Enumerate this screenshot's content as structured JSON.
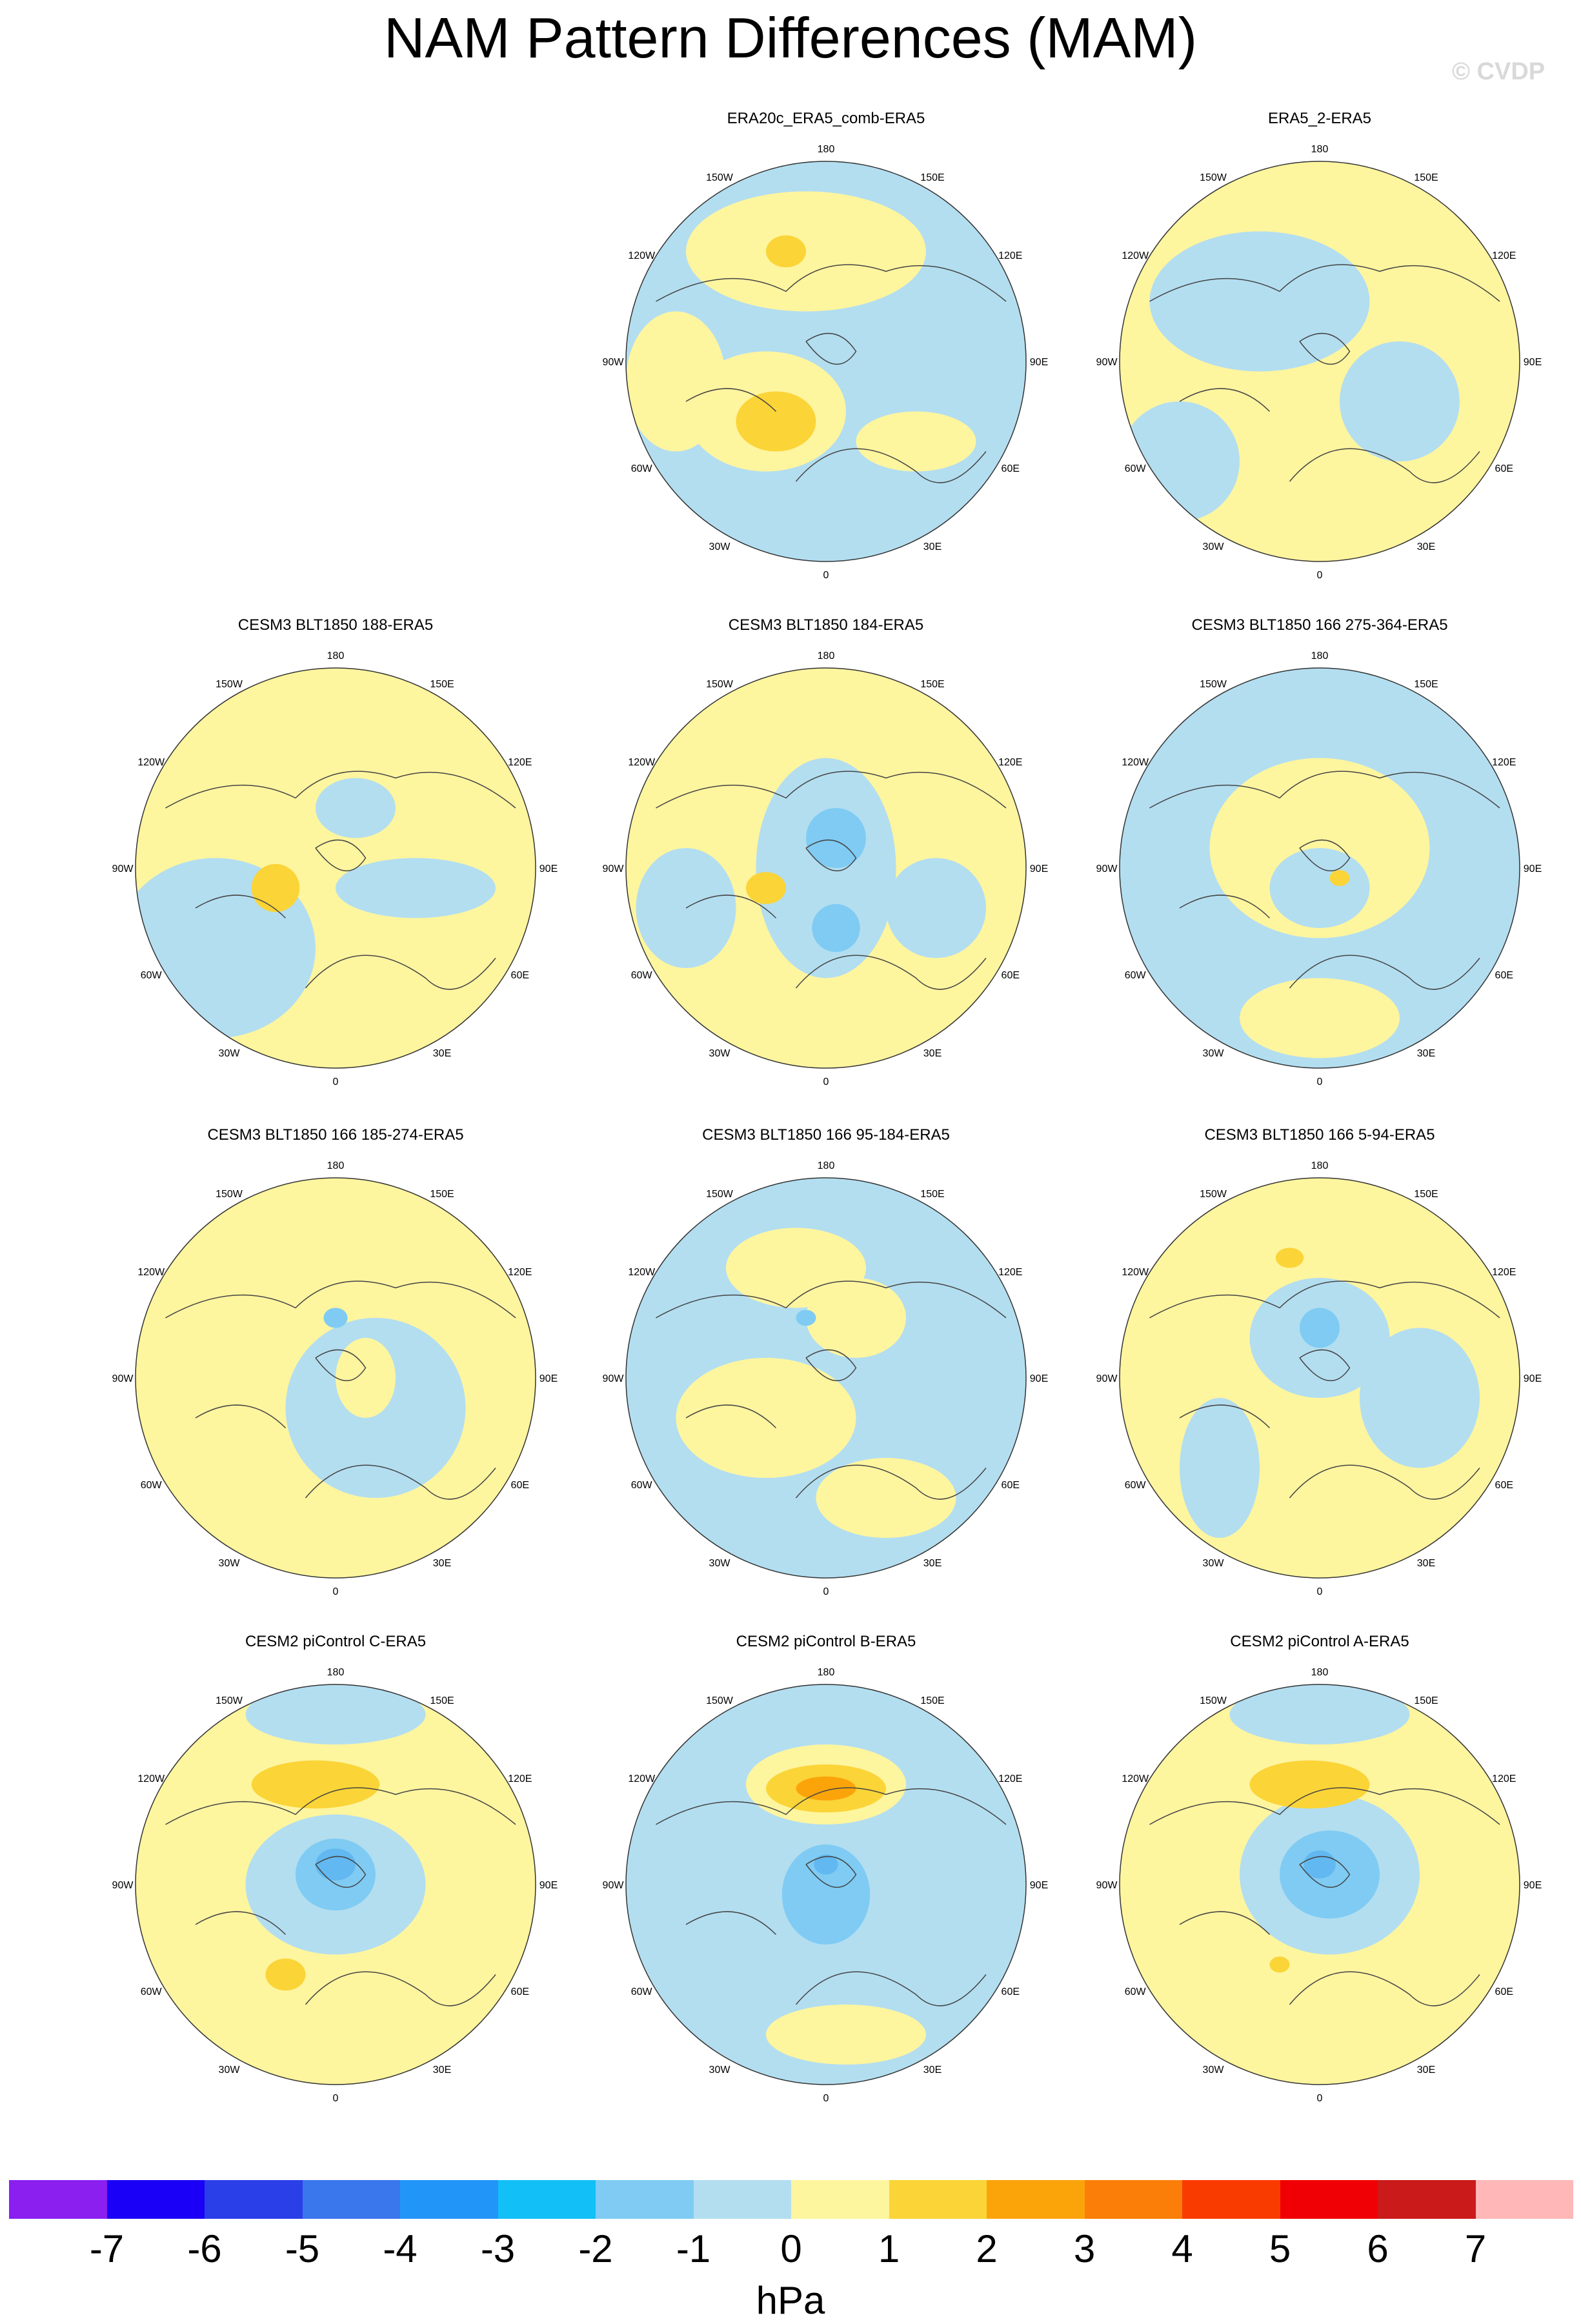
{
  "title": "NAM Pattern Differences (MAM)",
  "copyright": "© CVDP",
  "colors": {
    "plus1": "#fef59f",
    "minus1": "#b3def0",
    "plus2": "#fbd437",
    "minus2": "#7fcbf3",
    "plus3": "#fba40a",
    "minus3": "#62b8f0",
    "coast": "#444444"
  },
  "map_labels": {
    "top": "180",
    "bottom": "0",
    "left": "90W",
    "right": "90E",
    "ul1": "150W",
    "ul2": "120W",
    "ur1": "150E",
    "ur2": "120E",
    "ll1": "60W",
    "ll2": "30W",
    "lr1": "60E",
    "lr2": "30E"
  },
  "panels": [
    {
      "title": "ERA20c_ERA5_comb-ERA5",
      "row": 0,
      "col": 1,
      "base": "minus1",
      "blobs": [
        {
          "dx": -0.1,
          "dy": -0.55,
          "rx": 0.6,
          "ry": 0.3,
          "c": "plus1"
        },
        {
          "dx": -0.75,
          "dy": 0.1,
          "rx": 0.25,
          "ry": 0.35,
          "c": "plus1"
        },
        {
          "dx": -0.3,
          "dy": 0.25,
          "rx": 0.4,
          "ry": 0.3,
          "c": "plus1"
        },
        {
          "dx": -0.25,
          "dy": 0.3,
          "rx": 0.2,
          "ry": 0.15,
          "c": "plus2"
        },
        {
          "dx": -0.2,
          "dy": -0.55,
          "rx": 0.1,
          "ry": 0.08,
          "c": "plus2"
        },
        {
          "dx": 0.45,
          "dy": 0.4,
          "rx": 0.3,
          "ry": 0.15,
          "c": "plus1"
        }
      ]
    },
    {
      "title": "ERA5_2-ERA5",
      "row": 0,
      "col": 2,
      "base": "plus1",
      "blobs": [
        {
          "dx": -0.3,
          "dy": -0.3,
          "rx": 0.55,
          "ry": 0.35,
          "c": "minus1"
        },
        {
          "dx": 0.4,
          "dy": 0.2,
          "rx": 0.3,
          "ry": 0.3,
          "c": "minus1"
        },
        {
          "dx": -0.7,
          "dy": 0.5,
          "rx": 0.3,
          "ry": 0.3,
          "c": "minus1"
        }
      ]
    },
    {
      "title": "CESM3 BLT1850 188-ERA5",
      "row": 1,
      "col": 0,
      "base": "plus1",
      "blobs": [
        {
          "dx": -0.6,
          "dy": 0.4,
          "rx": 0.5,
          "ry": 0.45,
          "c": "minus1"
        },
        {
          "dx": 0.4,
          "dy": 0.1,
          "rx": 0.4,
          "ry": 0.15,
          "c": "minus1"
        },
        {
          "dx": -0.3,
          "dy": 0.1,
          "rx": 0.12,
          "ry": 0.12,
          "c": "plus2"
        },
        {
          "dx": 0.1,
          "dy": -0.3,
          "rx": 0.2,
          "ry": 0.15,
          "c": "minus1"
        }
      ]
    },
    {
      "title": "CESM3 BLT1850 184-ERA5",
      "row": 1,
      "col": 1,
      "base": "plus1",
      "blobs": [
        {
          "dx": 0.0,
          "dy": 0.0,
          "rx": 0.35,
          "ry": 0.55,
          "c": "minus1"
        },
        {
          "dx": 0.05,
          "dy": -0.15,
          "rx": 0.15,
          "ry": 0.15,
          "c": "minus2"
        },
        {
          "dx": 0.05,
          "dy": 0.3,
          "rx": 0.12,
          "ry": 0.12,
          "c": "minus2"
        },
        {
          "dx": -0.7,
          "dy": 0.2,
          "rx": 0.25,
          "ry": 0.3,
          "c": "minus1"
        },
        {
          "dx": 0.55,
          "dy": 0.2,
          "rx": 0.25,
          "ry": 0.25,
          "c": "minus1"
        },
        {
          "dx": -0.3,
          "dy": 0.1,
          "rx": 0.1,
          "ry": 0.08,
          "c": "plus2"
        }
      ]
    },
    {
      "title": "CESM3 BLT1850 166 275-364-ERA5",
      "row": 1,
      "col": 2,
      "base": "minus1",
      "blobs": [
        {
          "dx": 0.0,
          "dy": -0.1,
          "rx": 0.55,
          "ry": 0.45,
          "c": "plus1"
        },
        {
          "dx": 0.0,
          "dy": 0.1,
          "rx": 0.25,
          "ry": 0.2,
          "c": "minus1"
        },
        {
          "dx": 0.0,
          "dy": 0.75,
          "rx": 0.4,
          "ry": 0.2,
          "c": "plus1"
        },
        {
          "dx": 0.1,
          "dy": 0.05,
          "rx": 0.05,
          "ry": 0.04,
          "c": "plus2"
        }
      ]
    },
    {
      "title": "CESM3 BLT1850 166 185-274-ERA5",
      "row": 2,
      "col": 0,
      "base": "plus1",
      "blobs": [
        {
          "dx": 0.2,
          "dy": 0.15,
          "rx": 0.45,
          "ry": 0.45,
          "c": "minus1"
        },
        {
          "dx": 0.15,
          "dy": 0.0,
          "rx": 0.15,
          "ry": 0.2,
          "c": "plus1"
        },
        {
          "dx": 0.0,
          "dy": -0.3,
          "rx": 0.06,
          "ry": 0.05,
          "c": "minus2"
        }
      ]
    },
    {
      "title": "CESM3 BLT1850 166 95-184-ERA5",
      "row": 2,
      "col": 1,
      "base": "minus1",
      "blobs": [
        {
          "dx": -0.3,
          "dy": 0.2,
          "rx": 0.45,
          "ry": 0.3,
          "c": "plus1"
        },
        {
          "dx": 0.15,
          "dy": -0.3,
          "rx": 0.25,
          "ry": 0.2,
          "c": "plus1"
        },
        {
          "dx": 0.3,
          "dy": 0.6,
          "rx": 0.35,
          "ry": 0.2,
          "c": "plus1"
        },
        {
          "dx": -0.15,
          "dy": -0.55,
          "rx": 0.35,
          "ry": 0.2,
          "c": "plus1"
        },
        {
          "dx": -0.1,
          "dy": -0.3,
          "rx": 0.05,
          "ry": 0.04,
          "c": "minus2"
        }
      ]
    },
    {
      "title": "CESM3 BLT1850 166 5-94-ERA5",
      "row": 2,
      "col": 2,
      "base": "plus1",
      "blobs": [
        {
          "dx": 0.0,
          "dy": -0.2,
          "rx": 0.35,
          "ry": 0.3,
          "c": "minus1"
        },
        {
          "dx": 0.5,
          "dy": 0.1,
          "rx": 0.3,
          "ry": 0.35,
          "c": "minus1"
        },
        {
          "dx": -0.5,
          "dy": 0.45,
          "rx": 0.2,
          "ry": 0.35,
          "c": "minus1"
        },
        {
          "dx": 0.0,
          "dy": -0.25,
          "rx": 0.1,
          "ry": 0.1,
          "c": "minus2"
        },
        {
          "dx": -0.15,
          "dy": -0.6,
          "rx": 0.07,
          "ry": 0.05,
          "c": "plus2"
        }
      ]
    },
    {
      "title": "CESM2 piControl C-ERA5",
      "row": 3,
      "col": 0,
      "base": "plus1",
      "blobs": [
        {
          "dx": 0.0,
          "dy": 0.0,
          "rx": 0.45,
          "ry": 0.35,
          "c": "minus1"
        },
        {
          "dx": 0.0,
          "dy": -0.05,
          "rx": 0.2,
          "ry": 0.18,
          "c": "minus2"
        },
        {
          "dx": 0.0,
          "dy": -0.1,
          "rx": 0.1,
          "ry": 0.08,
          "c": "minus3"
        },
        {
          "dx": -0.1,
          "dy": -0.5,
          "rx": 0.32,
          "ry": 0.12,
          "c": "plus2"
        },
        {
          "dx": -0.25,
          "dy": 0.45,
          "rx": 0.1,
          "ry": 0.08,
          "c": "plus2"
        },
        {
          "dx": 0.0,
          "dy": -0.85,
          "rx": 0.45,
          "ry": 0.15,
          "c": "minus1"
        }
      ]
    },
    {
      "title": "CESM2 piControl B-ERA5",
      "row": 3,
      "col": 1,
      "base": "minus1",
      "blobs": [
        {
          "dx": 0.0,
          "dy": -0.5,
          "rx": 0.4,
          "ry": 0.2,
          "c": "plus1"
        },
        {
          "dx": 0.0,
          "dy": -0.48,
          "rx": 0.3,
          "ry": 0.12,
          "c": "plus2"
        },
        {
          "dx": 0.0,
          "dy": -0.48,
          "rx": 0.15,
          "ry": 0.06,
          "c": "plus3"
        },
        {
          "dx": 0.0,
          "dy": 0.05,
          "rx": 0.22,
          "ry": 0.25,
          "c": "minus2"
        },
        {
          "dx": 0.0,
          "dy": -0.1,
          "rx": 0.06,
          "ry": 0.05,
          "c": "minus3"
        },
        {
          "dx": 0.1,
          "dy": 0.75,
          "rx": 0.4,
          "ry": 0.15,
          "c": "plus1"
        }
      ]
    },
    {
      "title": "CESM2 piControl A-ERA5",
      "row": 3,
      "col": 2,
      "base": "plus1",
      "blobs": [
        {
          "dx": 0.05,
          "dy": -0.05,
          "rx": 0.45,
          "ry": 0.4,
          "c": "minus1"
        },
        {
          "dx": 0.05,
          "dy": -0.05,
          "rx": 0.25,
          "ry": 0.22,
          "c": "minus2"
        },
        {
          "dx": 0.0,
          "dy": -0.1,
          "rx": 0.08,
          "ry": 0.07,
          "c": "minus3"
        },
        {
          "dx": -0.05,
          "dy": -0.5,
          "rx": 0.3,
          "ry": 0.12,
          "c": "plus2"
        },
        {
          "dx": -0.2,
          "dy": 0.4,
          "rx": 0.05,
          "ry": 0.04,
          "c": "plus2"
        },
        {
          "dx": 0.0,
          "dy": -0.85,
          "rx": 0.45,
          "ry": 0.15,
          "c": "minus1"
        }
      ]
    }
  ],
  "colorbar": {
    "colors": [
      "#8a1ff0",
      "#1a00f6",
      "#2a3fe8",
      "#3a76ec",
      "#2196f8",
      "#12c0f7",
      "#7fcbf3",
      "#b3def0",
      "#fef59f",
      "#fbd437",
      "#fba40a",
      "#fa7e07",
      "#fa3b00",
      "#f00004",
      "#cb1a1a",
      "#ffb7b7"
    ],
    "ticks": [
      "-7",
      "-6",
      "-5",
      "-4",
      "-3",
      "-2",
      "-1",
      "0",
      "1",
      "2",
      "3",
      "4",
      "5",
      "6",
      "7"
    ],
    "unit": "hPa"
  }
}
